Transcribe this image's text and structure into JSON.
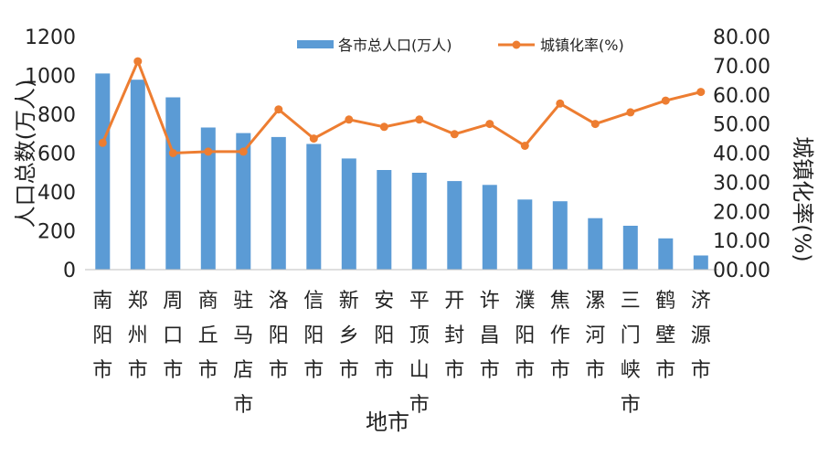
{
  "chart_data": {
    "type": "bar",
    "categories": [
      "南阳市",
      "郑州市",
      "周口市",
      "商丘市",
      "驻马店市",
      "洛阳市",
      "信阳市",
      "新乡市",
      "安阳市",
      "平顶山市",
      "开封市",
      "许昌市",
      "濮阳市",
      "焦作市",
      "漯河市",
      "三门峡市",
      "鹤壁市",
      "济源市"
    ],
    "series": [
      {
        "name": "各市总人口(万人)",
        "kind": "bar",
        "axis": "left",
        "color": "#5B9BD5",
        "values": [
          1010,
          978,
          887,
          732,
          703,
          683,
          647,
          572,
          513,
          499,
          456,
          436,
          361,
          352,
          265,
          226,
          161,
          73
        ]
      },
      {
        "name": "城镇化率(%)",
        "kind": "line",
        "axis": "right",
        "color": "#ED7D31",
        "values": [
          43.5,
          71.5,
          40.0,
          40.5,
          40.5,
          55.0,
          45.0,
          51.5,
          49.0,
          51.5,
          46.5,
          50.0,
          42.5,
          57.0,
          50.0,
          54.0,
          58.0,
          61.0
        ]
      }
    ],
    "xlabel": "地市",
    "ylabel": "人口总数(万人)",
    "ylabel_right": "城镇化率(%)",
    "ylim": [
      0,
      1200
    ],
    "ylim_right": [
      0,
      80
    ],
    "yticks": [
      "0",
      "200",
      "400",
      "600",
      "800",
      "1000",
      "1200"
    ],
    "yticks_right": [
      "00.00",
      "10.00",
      "20.00",
      "30.00",
      "40.00",
      "50.00",
      "60.00",
      "70.00",
      "80.00"
    ],
    "grid": false,
    "legend_position": "top-right"
  }
}
